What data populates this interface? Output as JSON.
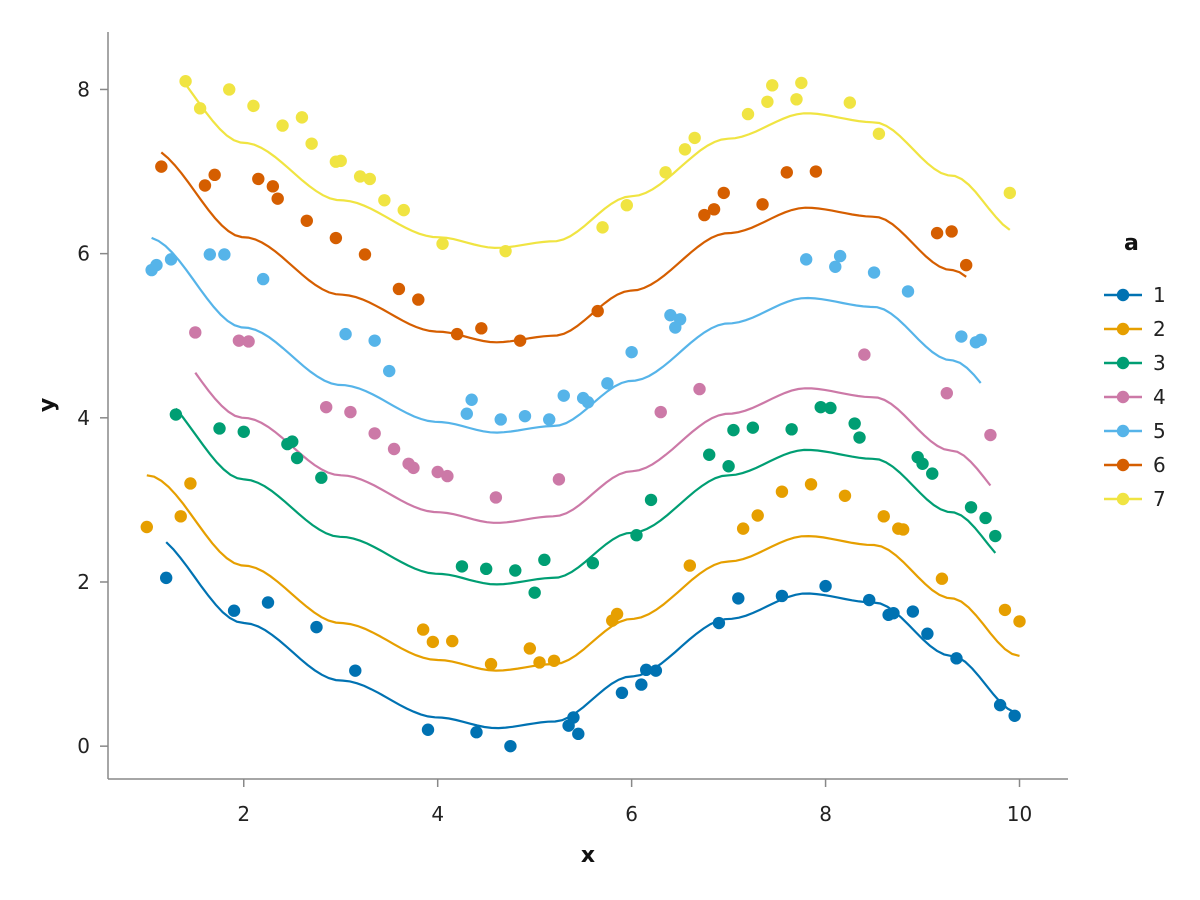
{
  "chart_data": {
    "type": "scatter",
    "xlabel": "x",
    "ylabel": "y",
    "xlim": [
      0.6,
      10.5
    ],
    "ylim": [
      -0.4,
      8.7
    ],
    "xticks": [
      2,
      4,
      6,
      8,
      10
    ],
    "yticks": [
      0,
      2,
      4,
      6,
      8
    ],
    "grid": false,
    "legend": {
      "title": "a",
      "placement": "right"
    },
    "series": [
      {
        "name": "1",
        "color": "#0072B2",
        "offset": 0.0,
        "x": [
          1.2,
          1.9,
          2.25,
          2.75,
          3.15,
          3.9,
          4.4,
          4.75,
          5.35,
          5.4,
          5.45,
          5.9,
          6.1,
          6.15,
          6.25,
          6.9,
          7.1,
          7.55,
          8.0,
          8.45,
          8.65,
          8.7,
          8.9,
          9.05,
          9.35,
          9.8,
          9.95
        ],
        "y": [
          2.05,
          1.65,
          1.75,
          1.45,
          0.92,
          0.2,
          0.17,
          0.0,
          0.25,
          0.35,
          0.15,
          0.65,
          0.75,
          0.93,
          0.92,
          1.5,
          1.8,
          1.83,
          1.95,
          1.78,
          1.6,
          1.62,
          1.64,
          1.37,
          1.07,
          0.5,
          0.37
        ]
      },
      {
        "name": "2",
        "color": "#E69F00",
        "offset": 0.7,
        "x": [
          1.0,
          1.35,
          1.45,
          3.85,
          3.95,
          4.15,
          4.55,
          4.95,
          5.05,
          5.2,
          5.8,
          5.85,
          6.6,
          7.15,
          7.3,
          7.55,
          7.85,
          8.2,
          8.6,
          8.75,
          8.8,
          9.2,
          9.85,
          10.0
        ],
        "y": [
          2.67,
          2.8,
          3.2,
          1.42,
          1.27,
          1.28,
          1.0,
          1.19,
          1.02,
          1.04,
          1.53,
          1.61,
          2.2,
          2.65,
          2.81,
          3.1,
          3.19,
          3.05,
          2.8,
          2.65,
          2.64,
          2.04,
          1.66,
          1.52
        ]
      },
      {
        "name": "3",
        "color": "#009E73",
        "offset": 1.75,
        "x": [
          1.3,
          1.75,
          2.0,
          2.45,
          2.5,
          2.55,
          2.8,
          4.25,
          4.5,
          4.8,
          5.0,
          5.1,
          5.6,
          6.05,
          6.2,
          6.8,
          7.0,
          7.05,
          7.25,
          7.65,
          7.95,
          8.05,
          8.3,
          8.35,
          8.95,
          9.0,
          9.1,
          9.5,
          9.65,
          9.75
        ],
        "y": [
          4.04,
          3.87,
          3.83,
          3.68,
          3.71,
          3.51,
          3.27,
          2.19,
          2.16,
          2.14,
          1.87,
          2.27,
          2.23,
          2.57,
          3.0,
          3.55,
          3.41,
          3.85,
          3.88,
          3.86,
          4.13,
          4.12,
          3.93,
          3.76,
          3.52,
          3.44,
          3.32,
          2.91,
          2.78,
          2.56
        ]
      },
      {
        "name": "4",
        "color": "#CC79A7",
        "offset": 2.5,
        "x": [
          1.5,
          1.95,
          2.05,
          2.85,
          3.1,
          3.35,
          3.55,
          3.7,
          3.75,
          4.0,
          4.1,
          4.6,
          5.25,
          6.3,
          6.7,
          8.4,
          9.25,
          9.7
        ],
        "y": [
          5.04,
          4.94,
          4.93,
          4.13,
          4.07,
          3.81,
          3.62,
          3.44,
          3.39,
          3.34,
          3.29,
          3.03,
          3.25,
          4.07,
          4.35,
          4.77,
          4.3,
          3.79
        ]
      },
      {
        "name": "5",
        "color": "#56B4E9",
        "offset": 3.6,
        "x": [
          1.05,
          1.1,
          1.25,
          1.65,
          1.8,
          2.2,
          3.05,
          3.35,
          3.5,
          4.3,
          4.35,
          4.65,
          4.9,
          5.15,
          5.3,
          5.5,
          5.55,
          5.75,
          6.0,
          6.4,
          6.45,
          6.5,
          7.8,
          8.1,
          8.15,
          8.5,
          8.85,
          9.4,
          9.55,
          9.6
        ],
        "y": [
          5.8,
          5.86,
          5.93,
          5.99,
          5.99,
          5.69,
          5.02,
          4.94,
          4.57,
          4.05,
          4.22,
          3.98,
          4.02,
          3.98,
          4.27,
          4.24,
          4.19,
          4.42,
          4.8,
          5.25,
          5.1,
          5.2,
          5.93,
          5.84,
          5.97,
          5.77,
          5.54,
          4.99,
          4.92,
          4.95
        ]
      },
      {
        "name": "6",
        "color": "#D55E00",
        "offset": 4.7,
        "x": [
          1.15,
          1.6,
          1.7,
          2.15,
          2.3,
          2.35,
          2.65,
          2.95,
          3.25,
          3.6,
          3.8,
          4.2,
          4.45,
          4.85,
          5.65,
          6.75,
          6.85,
          6.95,
          7.35,
          7.6,
          7.9,
          9.15,
          9.3,
          9.45
        ],
        "y": [
          7.06,
          6.83,
          6.96,
          6.91,
          6.82,
          6.67,
          6.4,
          6.19,
          5.99,
          5.57,
          5.44,
          5.02,
          5.09,
          4.94,
          5.3,
          6.47,
          6.54,
          6.74,
          6.6,
          6.99,
          7.0,
          6.25,
          6.27,
          5.86
        ]
      },
      {
        "name": "7",
        "color": "#F0E442",
        "offset": 5.85,
        "x": [
          1.4,
          1.55,
          1.85,
          2.1,
          2.4,
          2.6,
          2.7,
          2.95,
          3.0,
          3.2,
          3.3,
          3.45,
          3.65,
          4.05,
          4.7,
          5.7,
          5.95,
          6.35,
          6.55,
          6.65,
          7.2,
          7.4,
          7.45,
          7.7,
          7.75,
          8.25,
          8.55,
          9.9
        ],
        "y": [
          8.1,
          7.77,
          8.0,
          7.8,
          7.56,
          7.66,
          7.34,
          7.12,
          7.13,
          6.94,
          6.91,
          6.65,
          6.53,
          6.12,
          6.03,
          6.32,
          6.59,
          6.99,
          7.27,
          7.41,
          7.7,
          7.85,
          8.05,
          7.88,
          8.08,
          7.84,
          7.46,
          6.74
        ]
      }
    ]
  }
}
